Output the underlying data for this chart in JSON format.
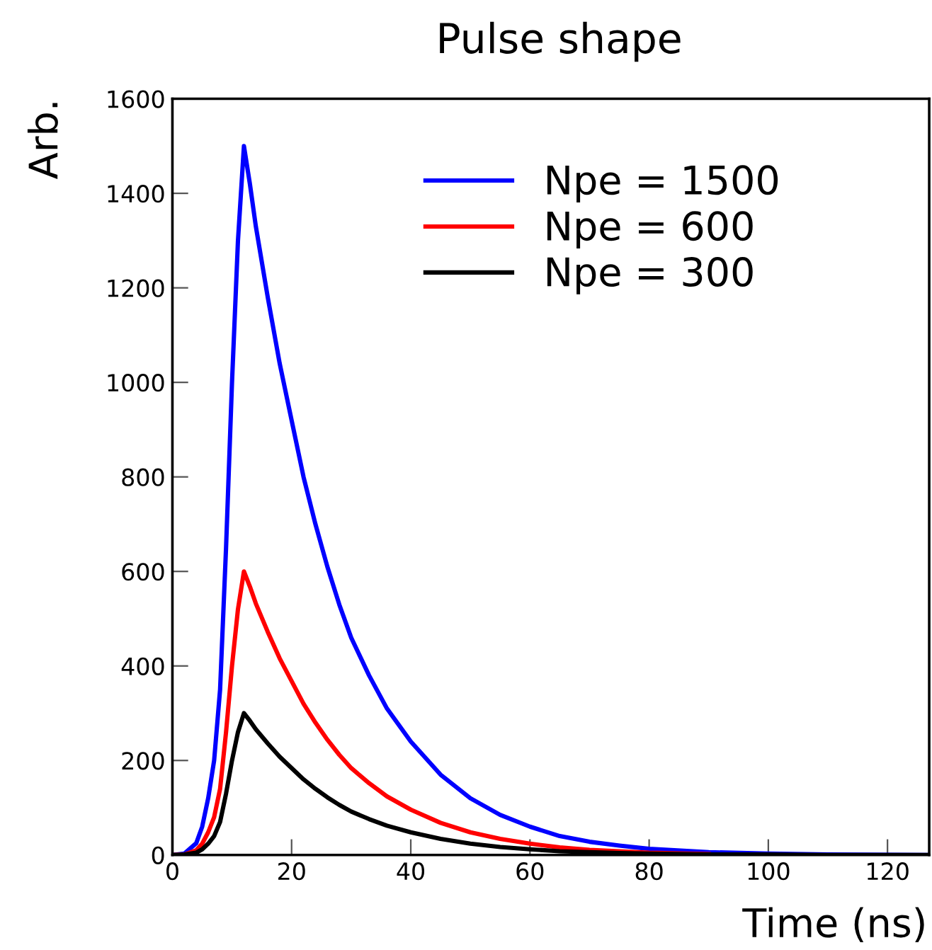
{
  "chart_data": {
    "type": "line",
    "title": "Pulse shape",
    "xlabel": "Time (ns)",
    "ylabel": "Arb.",
    "x": [
      0,
      2,
      4,
      5,
      6,
      7,
      8,
      9,
      10,
      11,
      12,
      13,
      14,
      16,
      18,
      20,
      22,
      24,
      26,
      28,
      30,
      33,
      36,
      40,
      45,
      50,
      55,
      60,
      65,
      70,
      75,
      80,
      90,
      100,
      110,
      127
    ],
    "series": [
      {
        "name": "Npe = 1500",
        "color": "#0000ff",
        "values": [
          0,
          3,
          25,
          60,
          120,
          200,
          350,
          650,
          1000,
          1300,
          1500,
          1420,
          1330,
          1180,
          1040,
          920,
          800,
          700,
          610,
          530,
          460,
          380,
          310,
          240,
          170,
          120,
          85,
          60,
          40,
          28,
          20,
          13,
          6,
          3,
          1,
          0
        ]
      },
      {
        "name": "Npe = 600",
        "color": "#ff0000",
        "values": [
          0,
          1,
          10,
          24,
          48,
          80,
          140,
          260,
          400,
          520,
          600,
          568,
          532,
          472,
          416,
          368,
          320,
          280,
          244,
          212,
          184,
          152,
          124,
          96,
          68,
          48,
          34,
          24,
          16,
          11,
          8,
          5,
          2,
          null,
          null,
          null
        ]
      },
      {
        "name": "Npe = 300",
        "color": "#000000",
        "values": [
          0,
          1,
          5,
          12,
          24,
          40,
          70,
          130,
          200,
          260,
          300,
          284,
          266,
          236,
          208,
          184,
          160,
          140,
          122,
          106,
          92,
          76,
          62,
          48,
          34,
          24,
          17,
          12,
          8,
          6,
          4,
          3,
          1,
          1,
          0,
          0
        ]
      }
    ],
    "xlim": [
      0,
      127
    ],
    "ylim": [
      0,
      1600
    ],
    "xticks": [
      0,
      20,
      40,
      60,
      80,
      100,
      120
    ],
    "yticks": [
      0,
      200,
      400,
      600,
      800,
      1000,
      1200,
      1400,
      1600
    ],
    "grid": false,
    "legend": "top right",
    "marker": "none",
    "line_style": "solid"
  }
}
